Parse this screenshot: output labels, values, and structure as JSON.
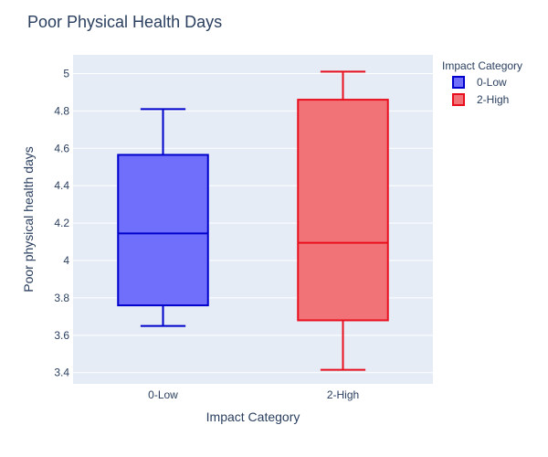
{
  "chart_data": {
    "type": "box",
    "title": "Poor Physical Health Days",
    "xlabel": "Impact Category",
    "ylabel": "Poor physical health days",
    "categories": [
      "0-Low",
      "2-High"
    ],
    "ylim": [
      3.34,
      5.1
    ],
    "yticks": [
      3.4,
      3.6,
      3.8,
      4,
      4.2,
      4.4,
      4.6,
      4.8,
      5
    ],
    "ytick_labels": [
      "3.4",
      "3.6",
      "3.8",
      "4",
      "4.2",
      "4.4",
      "4.6",
      "4.8",
      "5"
    ],
    "grid": true,
    "legend": {
      "title": "Impact Category",
      "placement": "top-right"
    },
    "series": [
      {
        "name": "0-Low",
        "category": "0-Low",
        "min": 3.65,
        "q1": 3.76,
        "median": 4.145,
        "q3": 4.565,
        "max": 4.81,
        "line_color": "#0000cc",
        "fill_color": "#6f6ffb"
      },
      {
        "name": "2-High",
        "category": "2-High",
        "min": 3.415,
        "q1": 3.68,
        "median": 4.095,
        "q3": 4.86,
        "max": 5.01,
        "line_color": "#e8101e",
        "fill_color": "#f27377"
      }
    ]
  }
}
